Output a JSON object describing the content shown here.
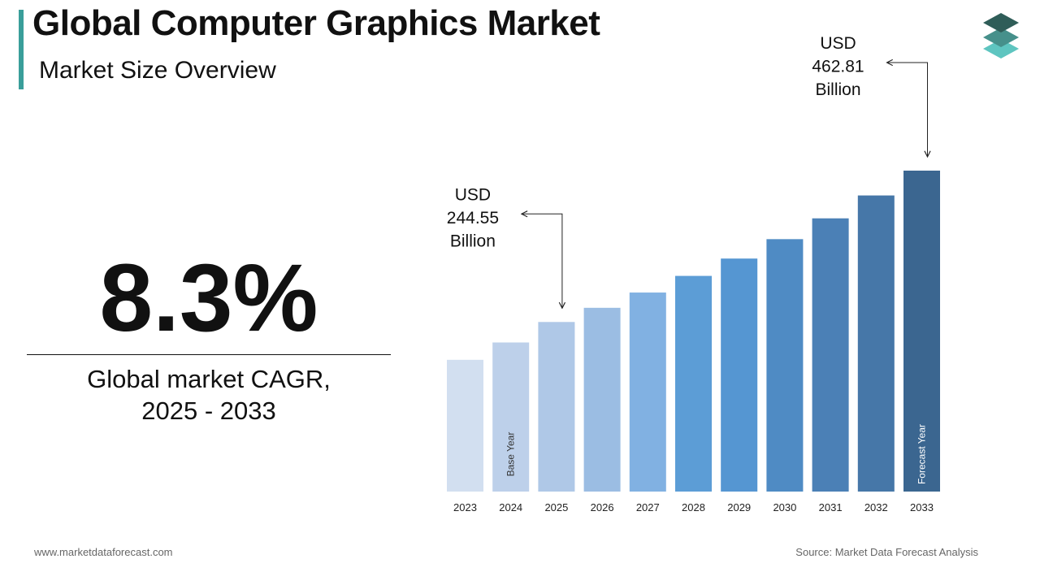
{
  "header": {
    "title": "Global Computer Graphics Market",
    "subtitle": "Market Size Overview",
    "accent_color": "#3a9e9a"
  },
  "logo": {
    "icon": "layered-stack-icon",
    "colors": [
      "#2f5d58",
      "#46908b",
      "#5ec5c0"
    ]
  },
  "cagr": {
    "value": "8.3%",
    "label_line1": "Global market CAGR,",
    "label_line2": "2025 - 2033"
  },
  "chart_data": {
    "type": "bar",
    "categories": [
      "2023",
      "2024",
      "2025",
      "2026",
      "2027",
      "2028",
      "2029",
      "2030",
      "2031",
      "2032",
      "2033"
    ],
    "values": [
      190,
      215,
      244.55,
      265,
      287,
      311,
      336,
      364,
      394,
      427,
      462.81
    ],
    "colors": [
      "#d2dff0",
      "#bdd0ea",
      "#afc8e7",
      "#9bbde3",
      "#81b1e2",
      "#5c9dd6",
      "#5596d2",
      "#4f8bc4",
      "#4b80b6",
      "#4677a8",
      "#3b6690"
    ],
    "bar_labels": [
      {
        "index": 1,
        "text": "Base Year",
        "color": "#333333"
      },
      {
        "index": 10,
        "text": "Forecast Year",
        "color": "#ffffff"
      }
    ],
    "annotations": [
      {
        "index": 2,
        "lines": [
          "USD",
          "244.55",
          "Billion"
        ]
      },
      {
        "index": 10,
        "lines": [
          "USD",
          "462.81",
          "Billion"
        ]
      }
    ]
  },
  "footer": {
    "website": "www.marketdataforecast.com",
    "source": "Source: Market Data Forecast Analysis"
  }
}
